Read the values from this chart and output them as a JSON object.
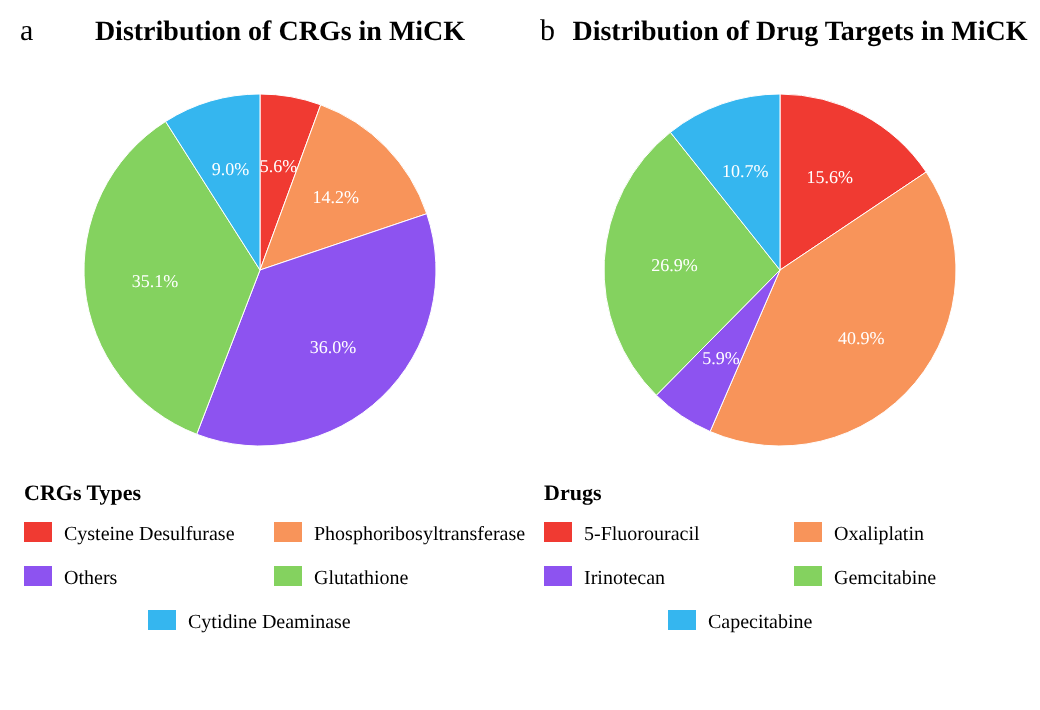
{
  "chart_data": [
    {
      "type": "pie",
      "title": "Distribution of CRGs in MiCK",
      "annotations": [
        "a"
      ],
      "legend_title": "CRGs Types",
      "legend": "bottom",
      "categories": [
        "Cysteine Desulfurase",
        "Phosphoribosyltransferase",
        "Others",
        "Glutathione",
        "Cytidine Deaminase"
      ],
      "values": [
        5.6,
        14.2,
        36.0,
        35.1,
        9.0
      ],
      "value_labels": [
        "5.6%",
        "14.2%",
        "36.0%",
        "35.1%",
        "9.0%"
      ],
      "colors": [
        "#f03a32",
        "#f8945a",
        "#8d53f0",
        "#84d25f",
        "#35b6ef"
      ]
    },
    {
      "type": "pie",
      "title": "Distribution of Drug Targets in MiCK",
      "annotations": [
        "b"
      ],
      "legend_title": "Drugs",
      "legend": "bottom",
      "categories": [
        "5-Fluorouracil",
        "Oxaliplatin",
        "Irinotecan",
        "Gemcitabine",
        "Capecitabine"
      ],
      "values": [
        15.6,
        40.9,
        5.9,
        26.9,
        10.7
      ],
      "value_labels": [
        "15.6%",
        "40.9%",
        "5.9%",
        "26.9%",
        "10.7%"
      ],
      "colors": [
        "#f03a32",
        "#f8945a",
        "#8d53f0",
        "#84d25f",
        "#35b6ef"
      ]
    }
  ]
}
